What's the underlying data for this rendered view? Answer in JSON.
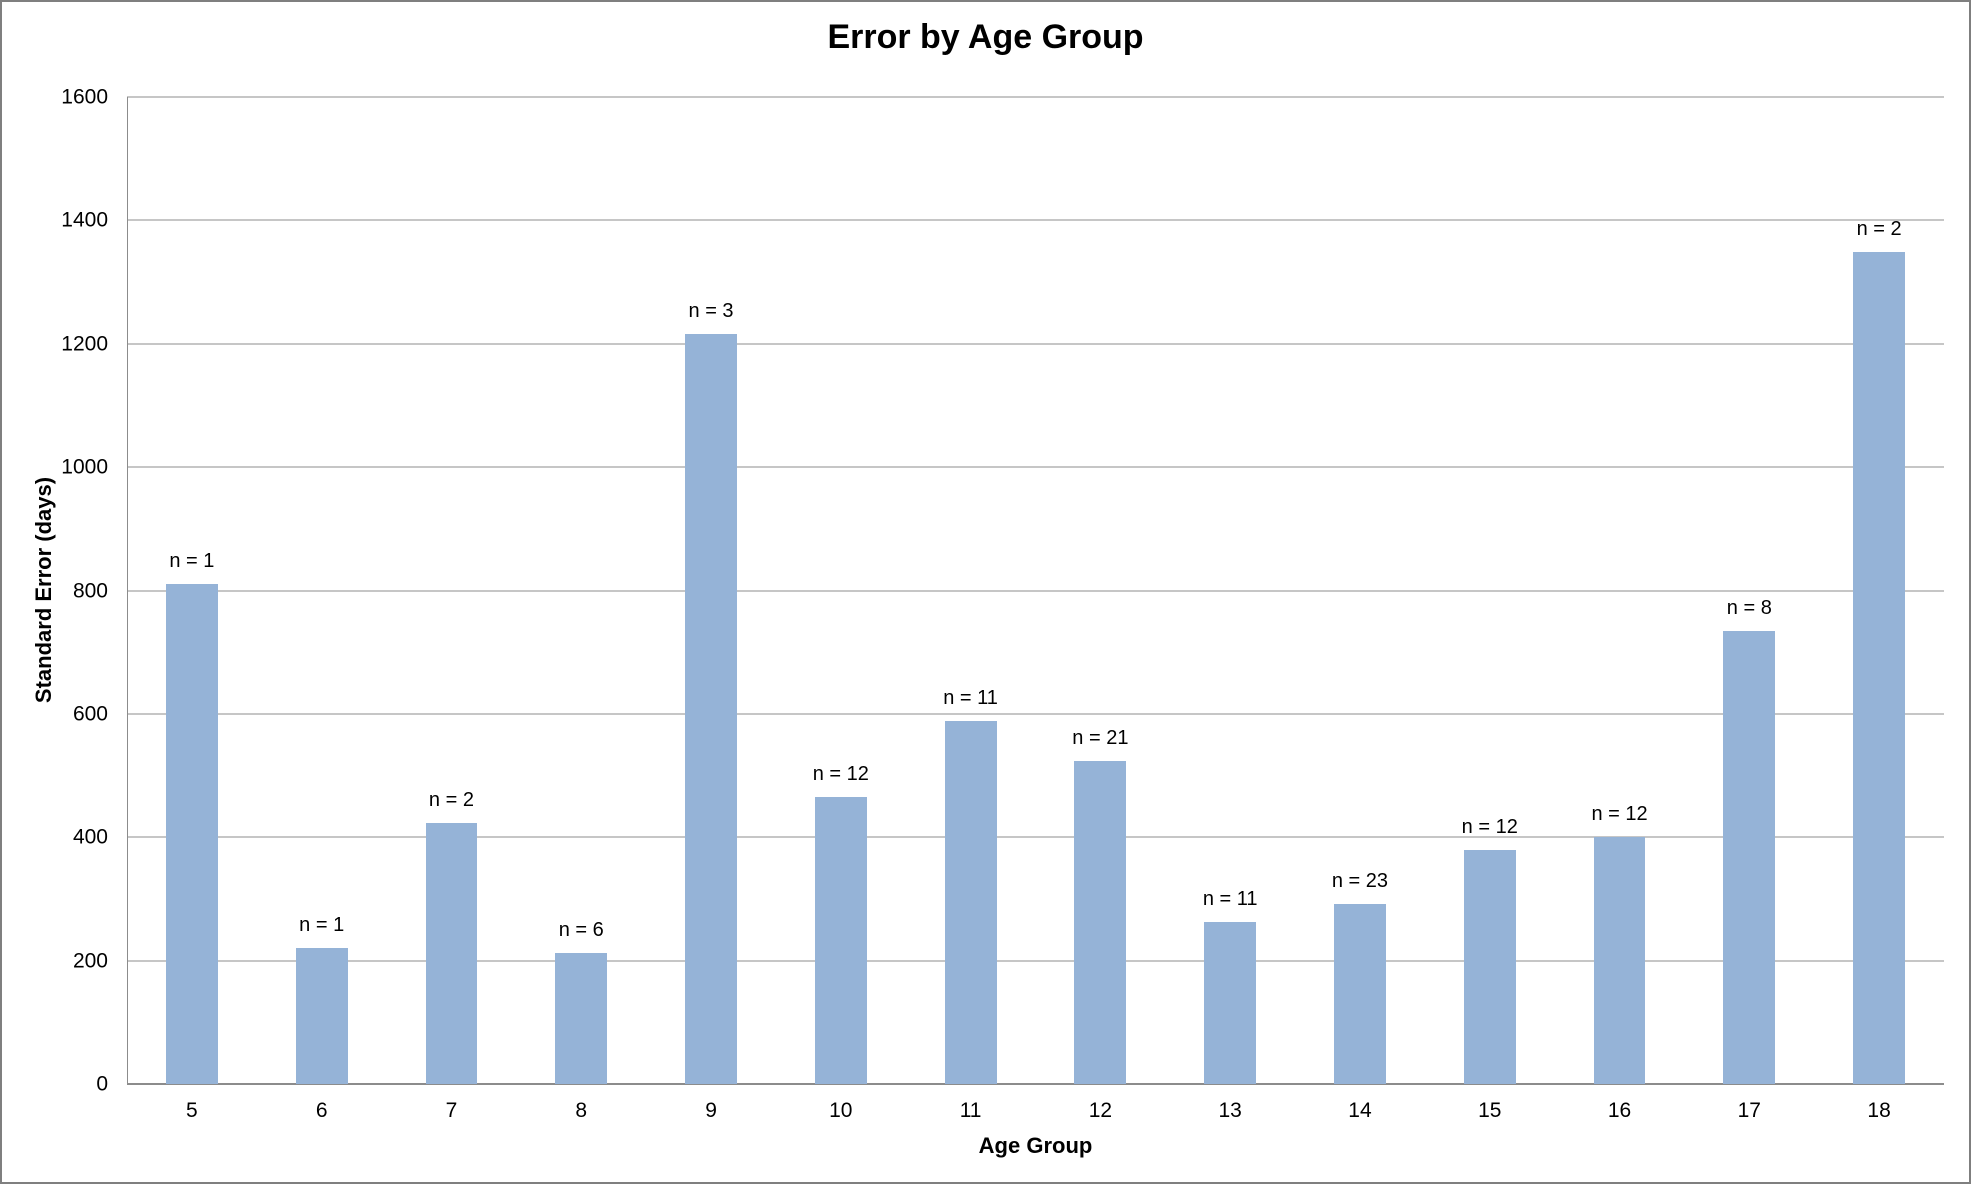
{
  "chart_data": {
    "type": "bar",
    "title": "Error by Age Group",
    "xlabel": "Age Group",
    "ylabel": "Standard Error (days)",
    "categories": [
      "5",
      "6",
      "7",
      "8",
      "9",
      "10",
      "11",
      "12",
      "13",
      "14",
      "15",
      "16",
      "17",
      "18"
    ],
    "values": [
      810,
      220,
      423,
      212,
      1216,
      466,
      589,
      524,
      263,
      292,
      379,
      401,
      734,
      1349
    ],
    "bar_labels": [
      "n = 1",
      "n = 1",
      "n = 2",
      "n = 6",
      "n = 3",
      "n = 12",
      "n = 11",
      "n = 21",
      "n = 11",
      "n = 23",
      "n = 12",
      "n = 12",
      "n = 8",
      "n = 2"
    ],
    "n_values": [
      1,
      1,
      2,
      6,
      3,
      12,
      11,
      21,
      11,
      23,
      12,
      12,
      8,
      2
    ],
    "ylim": [
      0,
      1600
    ],
    "yticks": [
      0,
      200,
      400,
      600,
      800,
      1000,
      1200,
      1400,
      1600
    ],
    "grid": "horizontal",
    "legend": "none",
    "bar_width_fraction": 0.4,
    "colors": {
      "bar_fill": "#95b3d7",
      "gridline": "#8c8c8c",
      "axis_line": "#8c8c8c",
      "text": "#000000",
      "frame_border": "#7f7f7f",
      "background": "#ffffff"
    }
  }
}
